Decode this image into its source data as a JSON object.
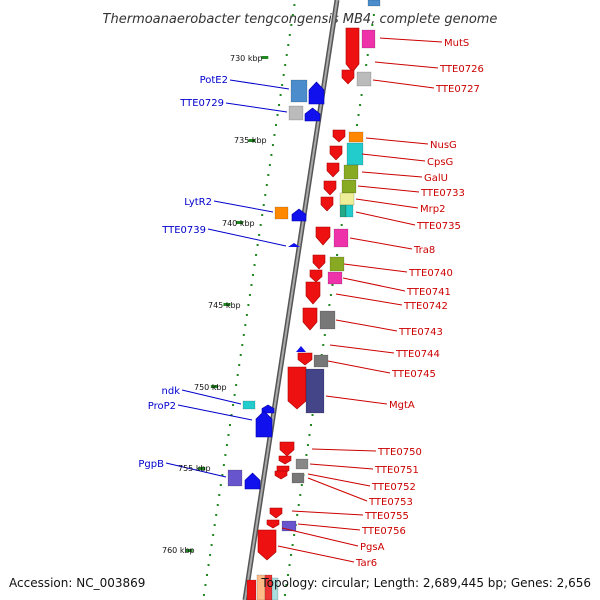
{
  "title": "Thermoanaerobacter tengcongensis MB4, complete genome",
  "accession_text": "Accession: NC_003869",
  "summary_text": "Topology: circular; Length: 2,689,445 bp; Genes: 2,656",
  "colors": {
    "left_label": "#0000cc",
    "right_label": "#cc0000",
    "backbone": "#888888",
    "tick": "#228822",
    "forward_arrow": "#0000ee",
    "reverse_arrow": "#ee0000"
  },
  "kbp_marks": [
    "730 kbp",
    "735 kbp",
    "740 kbp",
    "745 kbp",
    "750 kbp",
    "755 kbp",
    "760 kbp"
  ],
  "left_genes": [
    "PotE2",
    "TTE0729",
    "LytR2",
    "TTE0739",
    "ndk",
    "ProP2",
    "PgpB"
  ],
  "right_genes": [
    "MutS",
    "TTE0726",
    "TTE0727",
    "NusG",
    "CpsG",
    "GalU",
    "TTE0733",
    "Mrp2",
    "TTE0735",
    "Tra8",
    "TTE0740",
    "TTE0741",
    "TTE0742",
    "TTE0743",
    "TTE0744",
    "TTE0745",
    "MgtA",
    "TTE0750",
    "TTE0751",
    "TTE0752",
    "TTE0753",
    "TTE0755",
    "TTE0756",
    "PgsA",
    "Tar6"
  ]
}
